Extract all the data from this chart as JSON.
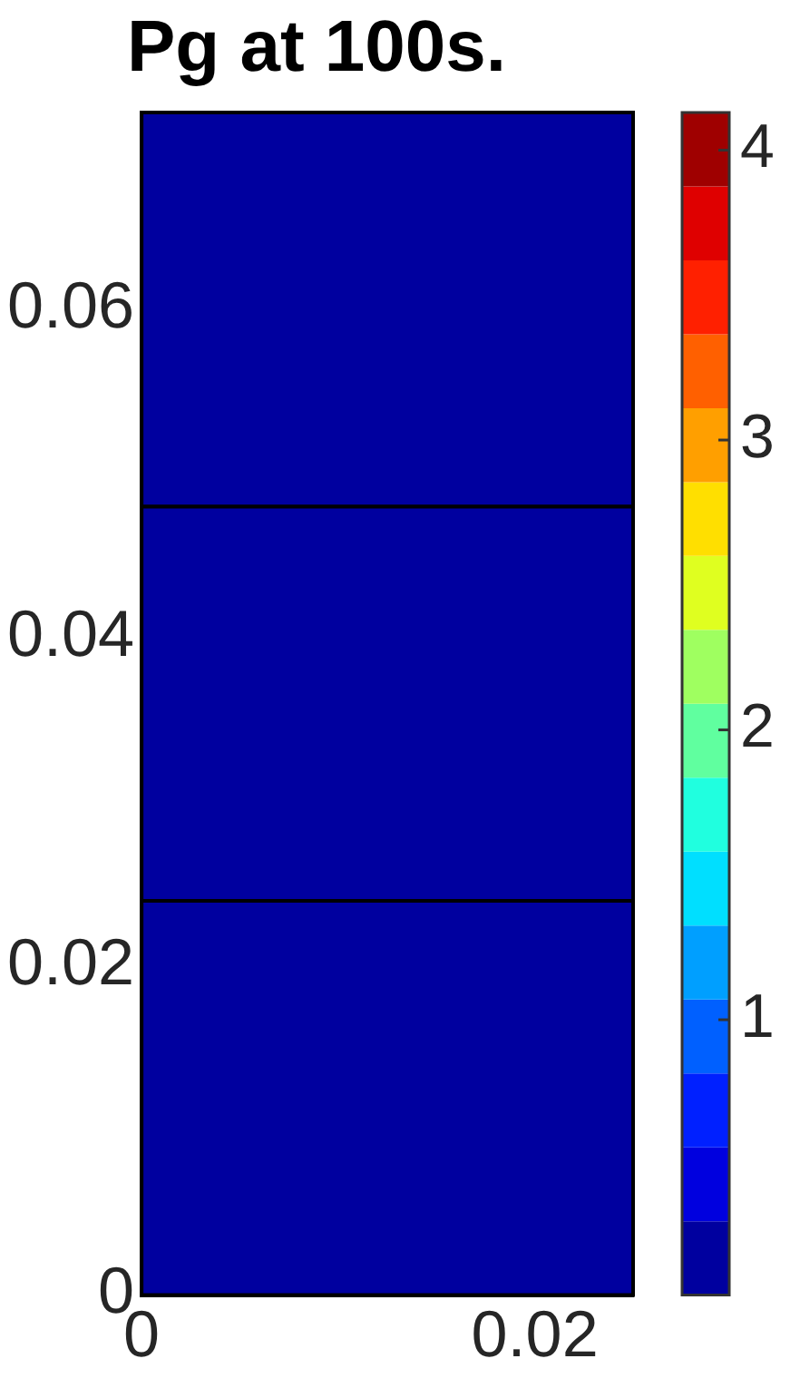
{
  "chart_data": {
    "type": "heatmap",
    "title": "Pg at 100s.",
    "cells": [
      [
        0.1
      ],
      [
        0.1
      ],
      [
        0.1
      ]
    ],
    "xlim": [
      0,
      0.025
    ],
    "xticks": [
      0,
      0.02
    ],
    "ylim": [
      0,
      0.072
    ],
    "yticks": [
      0,
      0.02,
      0.04,
      0.06
    ],
    "clim": [
      0.05,
      4.13
    ],
    "cticks": [
      1,
      2,
      3,
      4
    ]
  }
}
